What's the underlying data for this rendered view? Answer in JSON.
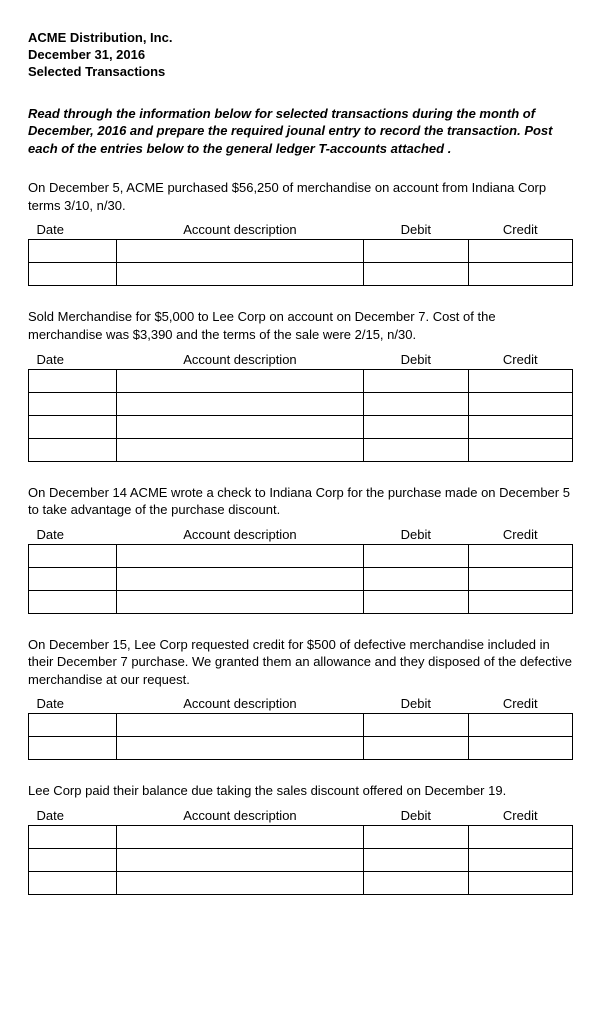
{
  "header": {
    "company": "ACME Distribution, Inc.",
    "date": "December 31, 2016",
    "subtitle": "Selected Transactions"
  },
  "instructions": "Read through the information below for selected transactions during the month of December, 2016 and prepare the required jounal entry to record the transaction. Post each of the entries below to the general ledger T-accounts attached .",
  "columns": {
    "date": "Date",
    "account": "Account description",
    "debit": "Debit",
    "credit": "Credit"
  },
  "transactions": [
    {
      "description": "On December 5, ACME purchased $56,250 of merchandise on account from Indiana Corp terms 3/10, n/30.",
      "rows": 2
    },
    {
      "description": "Sold Merchandise for $5,000 to Lee Corp on account on December 7. Cost of the merchandise was $3,390 and the terms of the sale were 2/15, n/30.",
      "rows": 4
    },
    {
      "description": "On December 14 ACME wrote a check to Indiana Corp for the purchase made on December 5 to take advantage of the purchase discount.",
      "rows": 3
    },
    {
      "description": "On December 15, Lee Corp requested credit for $500 of defective merchandise included in their December 7 purchase. We granted them an allowance and they disposed of the defective merchandise at our request.",
      "rows": 2
    },
    {
      "description": "Lee Corp paid their balance due taking the sales discount offered on December 19.",
      "rows": 3
    }
  ]
}
